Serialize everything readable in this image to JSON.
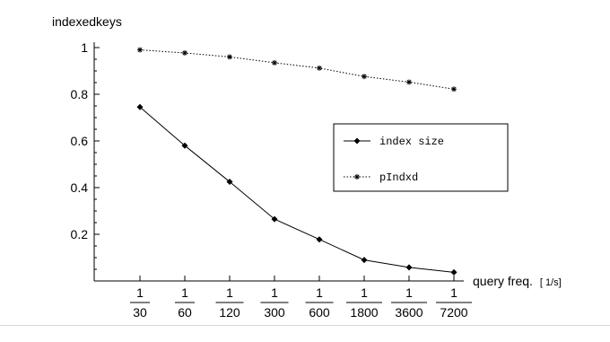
{
  "chart_data": {
    "type": "line",
    "ylabel": "indexedkeys",
    "xlabel_main": "query freq.",
    "xlabel_unit": "[ 1/s]",
    "categories": [
      {
        "num": "1",
        "den": "30"
      },
      {
        "num": "1",
        "den": "60"
      },
      {
        "num": "1",
        "den": "120"
      },
      {
        "num": "1",
        "den": "300"
      },
      {
        "num": "1",
        "den": "600"
      },
      {
        "num": "1",
        "den": "1800"
      },
      {
        "num": "1",
        "den": "3600"
      },
      {
        "num": "1",
        "den": "7200"
      }
    ],
    "y_ticks": [
      "0.2",
      "0.4",
      "0.6",
      "0.8",
      "1"
    ],
    "ylim": [
      0,
      1
    ],
    "series": [
      {
        "name": "index size",
        "marker": "diamond",
        "style": "solid",
        "values": [
          0.745,
          0.58,
          0.425,
          0.265,
          0.178,
          0.09,
          0.058,
          0.037
        ]
      },
      {
        "name": "pIndxd",
        "marker": "star",
        "style": "dotted",
        "values": [
          0.99,
          0.977,
          0.96,
          0.935,
          0.912,
          0.876,
          0.852,
          0.822
        ]
      }
    ],
    "legend_position": "right",
    "grid": false
  }
}
